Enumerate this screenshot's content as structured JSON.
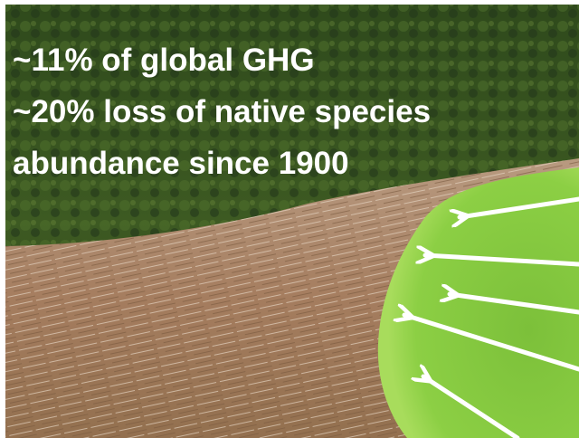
{
  "overlay_text": {
    "lines": [
      "~11% of global GHG",
      "~20% loss of native species",
      "abundance since 1900"
    ]
  }
}
